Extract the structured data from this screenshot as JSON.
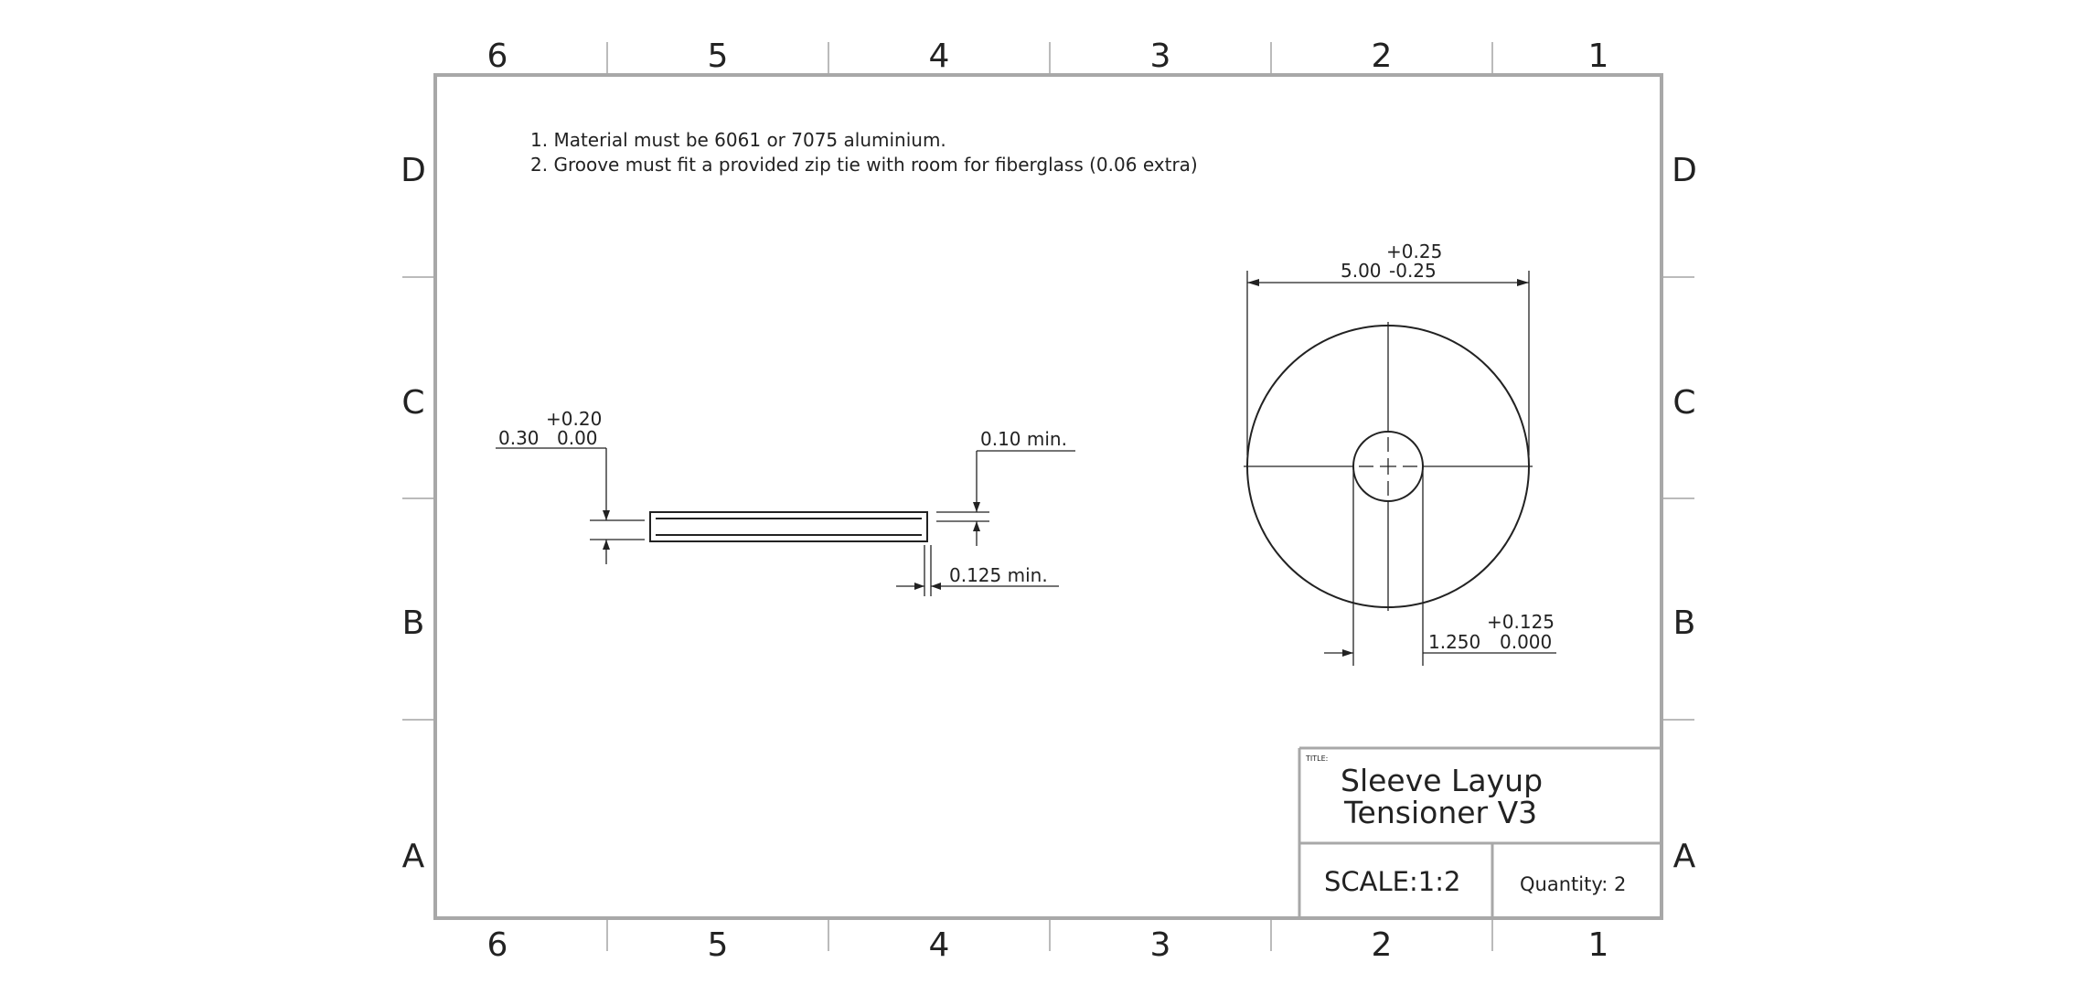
{
  "sheet": {
    "columns_top": [
      "6",
      "5",
      "4",
      "3",
      "2",
      "1"
    ],
    "columns_bottom": [
      "6",
      "5",
      "4",
      "3",
      "2",
      "1"
    ],
    "rows_left": [
      "D",
      "C",
      "B",
      "A"
    ],
    "rows_right": [
      "D",
      "C",
      "B",
      "A"
    ]
  },
  "notes": [
    "1. Material must be 6061 or 7075 aluminium.",
    "2. Groove must fit a provided zip tie with room for fiberglass (0.06 extra)"
  ],
  "side_view": {
    "thickness_dim": {
      "tol_upper": "+0.20",
      "nominal": "0.30",
      "tol_lower": "0.00"
    },
    "groove_depth_dim": "0.10 min.",
    "groove_width_dim": "0.125 min."
  },
  "front_view": {
    "diameter_dim": {
      "tol_upper": "+0.25",
      "nominal": "5.00",
      "tol_lower": "-0.25"
    },
    "bore_dim": {
      "tol_upper": "+0.125",
      "nominal": "1.250",
      "tol_lower": "0.000"
    }
  },
  "title_block": {
    "title_label": "TITLE:",
    "title_line1": "Sleeve Layup",
    "title_line2": "Tensioner V3",
    "scale": "SCALE:1:2",
    "quantity": "Quantity: 2"
  },
  "colors": {
    "line": "#222222",
    "frame": "#a8a8a8",
    "zone_tick": "#bbbbbb"
  }
}
